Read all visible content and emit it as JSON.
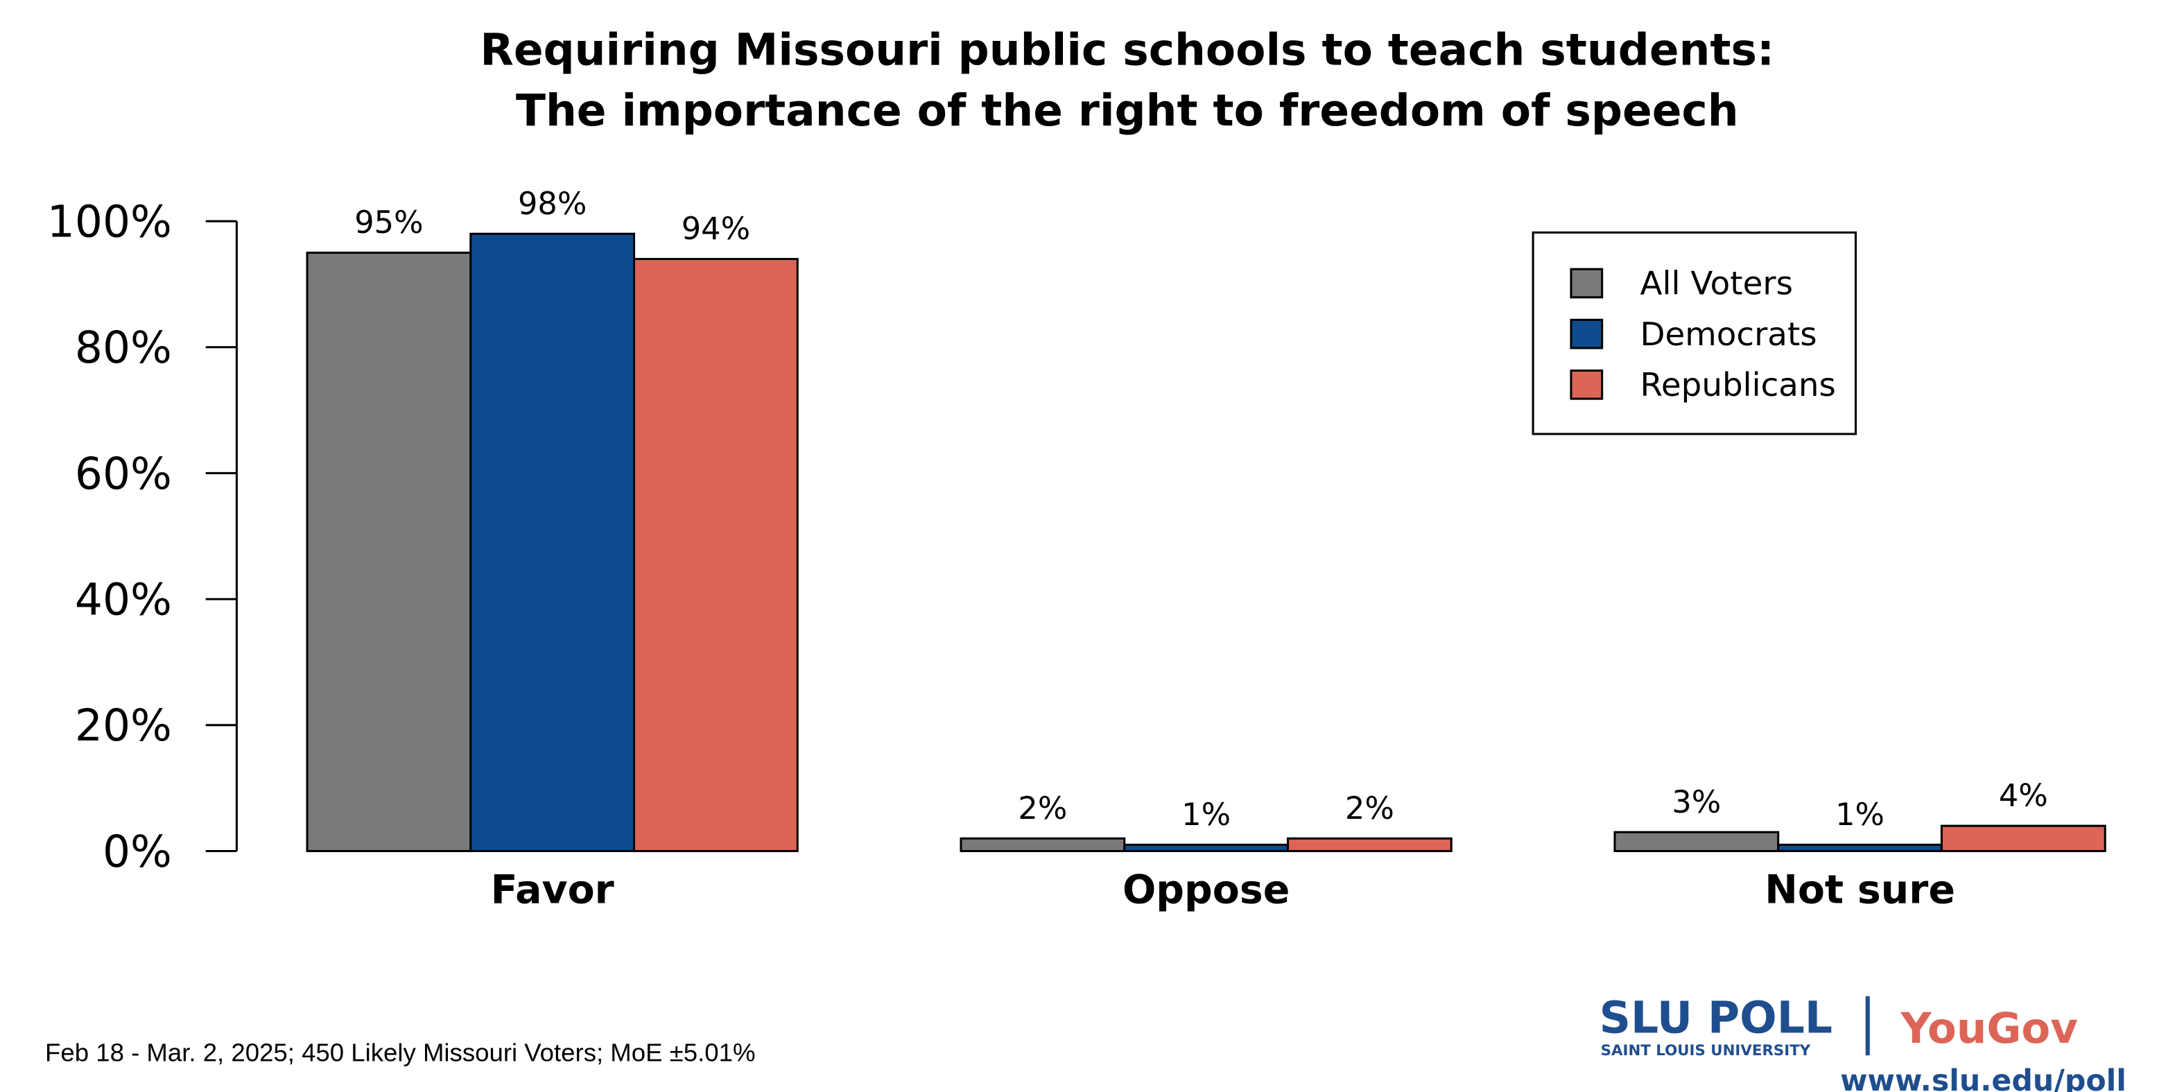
{
  "chart_data": {
    "type": "bar",
    "title": [
      "Requiring Missouri public schools to teach students:",
      "The importance of the right to freedom of speech"
    ],
    "xlabel": "",
    "ylabel": "",
    "categories": [
      "Favor",
      "Oppose",
      "Not sure"
    ],
    "series": [
      {
        "name": "All Voters",
        "values": [
          95,
          2,
          3
        ],
        "labels": [
          "95%",
          "2%",
          "3%"
        ],
        "color": "#7a7a7a"
      },
      {
        "name": "Democrats",
        "values": [
          98,
          1,
          1
        ],
        "labels": [
          "98%",
          "1%",
          "1%"
        ],
        "color": "#0e4c8f"
      },
      {
        "name": "Republicans",
        "values": [
          94,
          2,
          4
        ],
        "labels": [
          "94%",
          "2%",
          "4%"
        ],
        "color": "#dc6558"
      }
    ],
    "ylim": [
      0,
      100
    ],
    "yticks": [
      "0%",
      "20%",
      "40%",
      "60%",
      "80%",
      "100%"
    ],
    "grid": false,
    "legend": "top-right"
  },
  "footer": {
    "note": "Feb 18 - Mar. 2, 2025; 450 Likely Missouri Voters; MoE ±5.01%",
    "logo_slu": "SLU POLL",
    "logo_slu_sub": "SAINT LOUIS UNIVERSITY",
    "logo_yougov": "YouGov",
    "url": "www.slu.edu/poll"
  },
  "colors": {
    "slu_blue": "#1f4e8f",
    "yougov_red": "#dc6558"
  }
}
